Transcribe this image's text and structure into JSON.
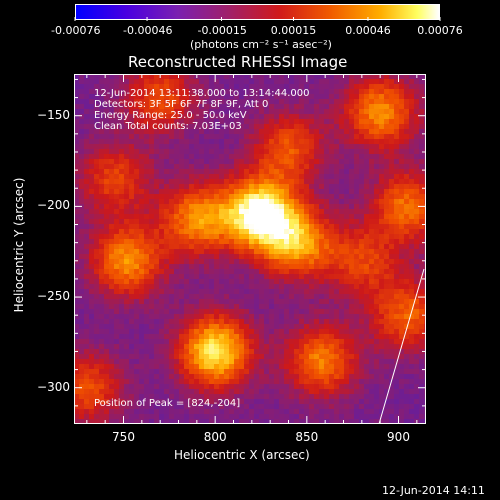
{
  "colorbar": {
    "ticks": [
      "-0.00076",
      "-0.00046",
      "-0.00015",
      "0.00015",
      "0.00046",
      "0.00076"
    ],
    "tick_values": [
      -0.00076,
      -0.00046,
      -0.00015,
      0.00015,
      0.00046,
      0.00076
    ]
  },
  "chart_data": {
    "type": "heatmap",
    "title": "Reconstructed RHESSI Image",
    "colorbar_label": "(photons cm⁻² s⁻¹ asec⁻²)",
    "xlabel": "Heliocentric X (arcsec)",
    "ylabel": "Heliocentric Y (arcsec)",
    "xlim": [
      723,
      915
    ],
    "ylim": [
      -320,
      -127
    ],
    "xticks": [
      750,
      800,
      850,
      900
    ],
    "xtick_labels": [
      "750",
      "800",
      "850",
      "900"
    ],
    "yticks": [
      -150,
      -200,
      -250,
      -300
    ],
    "ytick_labels": [
      "−150",
      "−200",
      "−250",
      "−300"
    ],
    "value_range": [
      -0.00076,
      0.00076
    ],
    "peak": [
      824,
      -204
    ],
    "sources": [
      {
        "x": 824,
        "y": -204,
        "value": 0.00076
      },
      {
        "x": 800,
        "y": -280,
        "value": 0.00066
      },
      {
        "x": 845,
        "y": -220,
        "value": 0.00044
      },
      {
        "x": 790,
        "y": -207,
        "value": 0.0004
      },
      {
        "x": 752,
        "y": -230,
        "value": 0.00042
      },
      {
        "x": 890,
        "y": -148,
        "value": 0.00042
      },
      {
        "x": 858,
        "y": -285,
        "value": 0.00038
      },
      {
        "x": 905,
        "y": -200,
        "value": 0.00034
      },
      {
        "x": 905,
        "y": -260,
        "value": 0.0003
      },
      {
        "x": 730,
        "y": -300,
        "value": 0.00026
      },
      {
        "x": 770,
        "y": -140,
        "value": 0.00024
      },
      {
        "x": 745,
        "y": -185,
        "value": 0.00022
      },
      {
        "x": 840,
        "y": -168,
        "value": 0.00026
      },
      {
        "x": 880,
        "y": -230,
        "value": 0.0002
      }
    ],
    "annotations": [
      "12-Jun-2014 13:11:38.000 to 13:14:44.000",
      "Detectors: 3F 5F 6F 7F 8F 9F, Att 0",
      "Energy Range: 25.0 - 50.0 keV",
      "Clean     Total counts: 7.03E+03",
      "Position of Peak = [824,-204]"
    ]
  },
  "footer": {
    "timestamp": "12-Jun-2014 14:11"
  }
}
